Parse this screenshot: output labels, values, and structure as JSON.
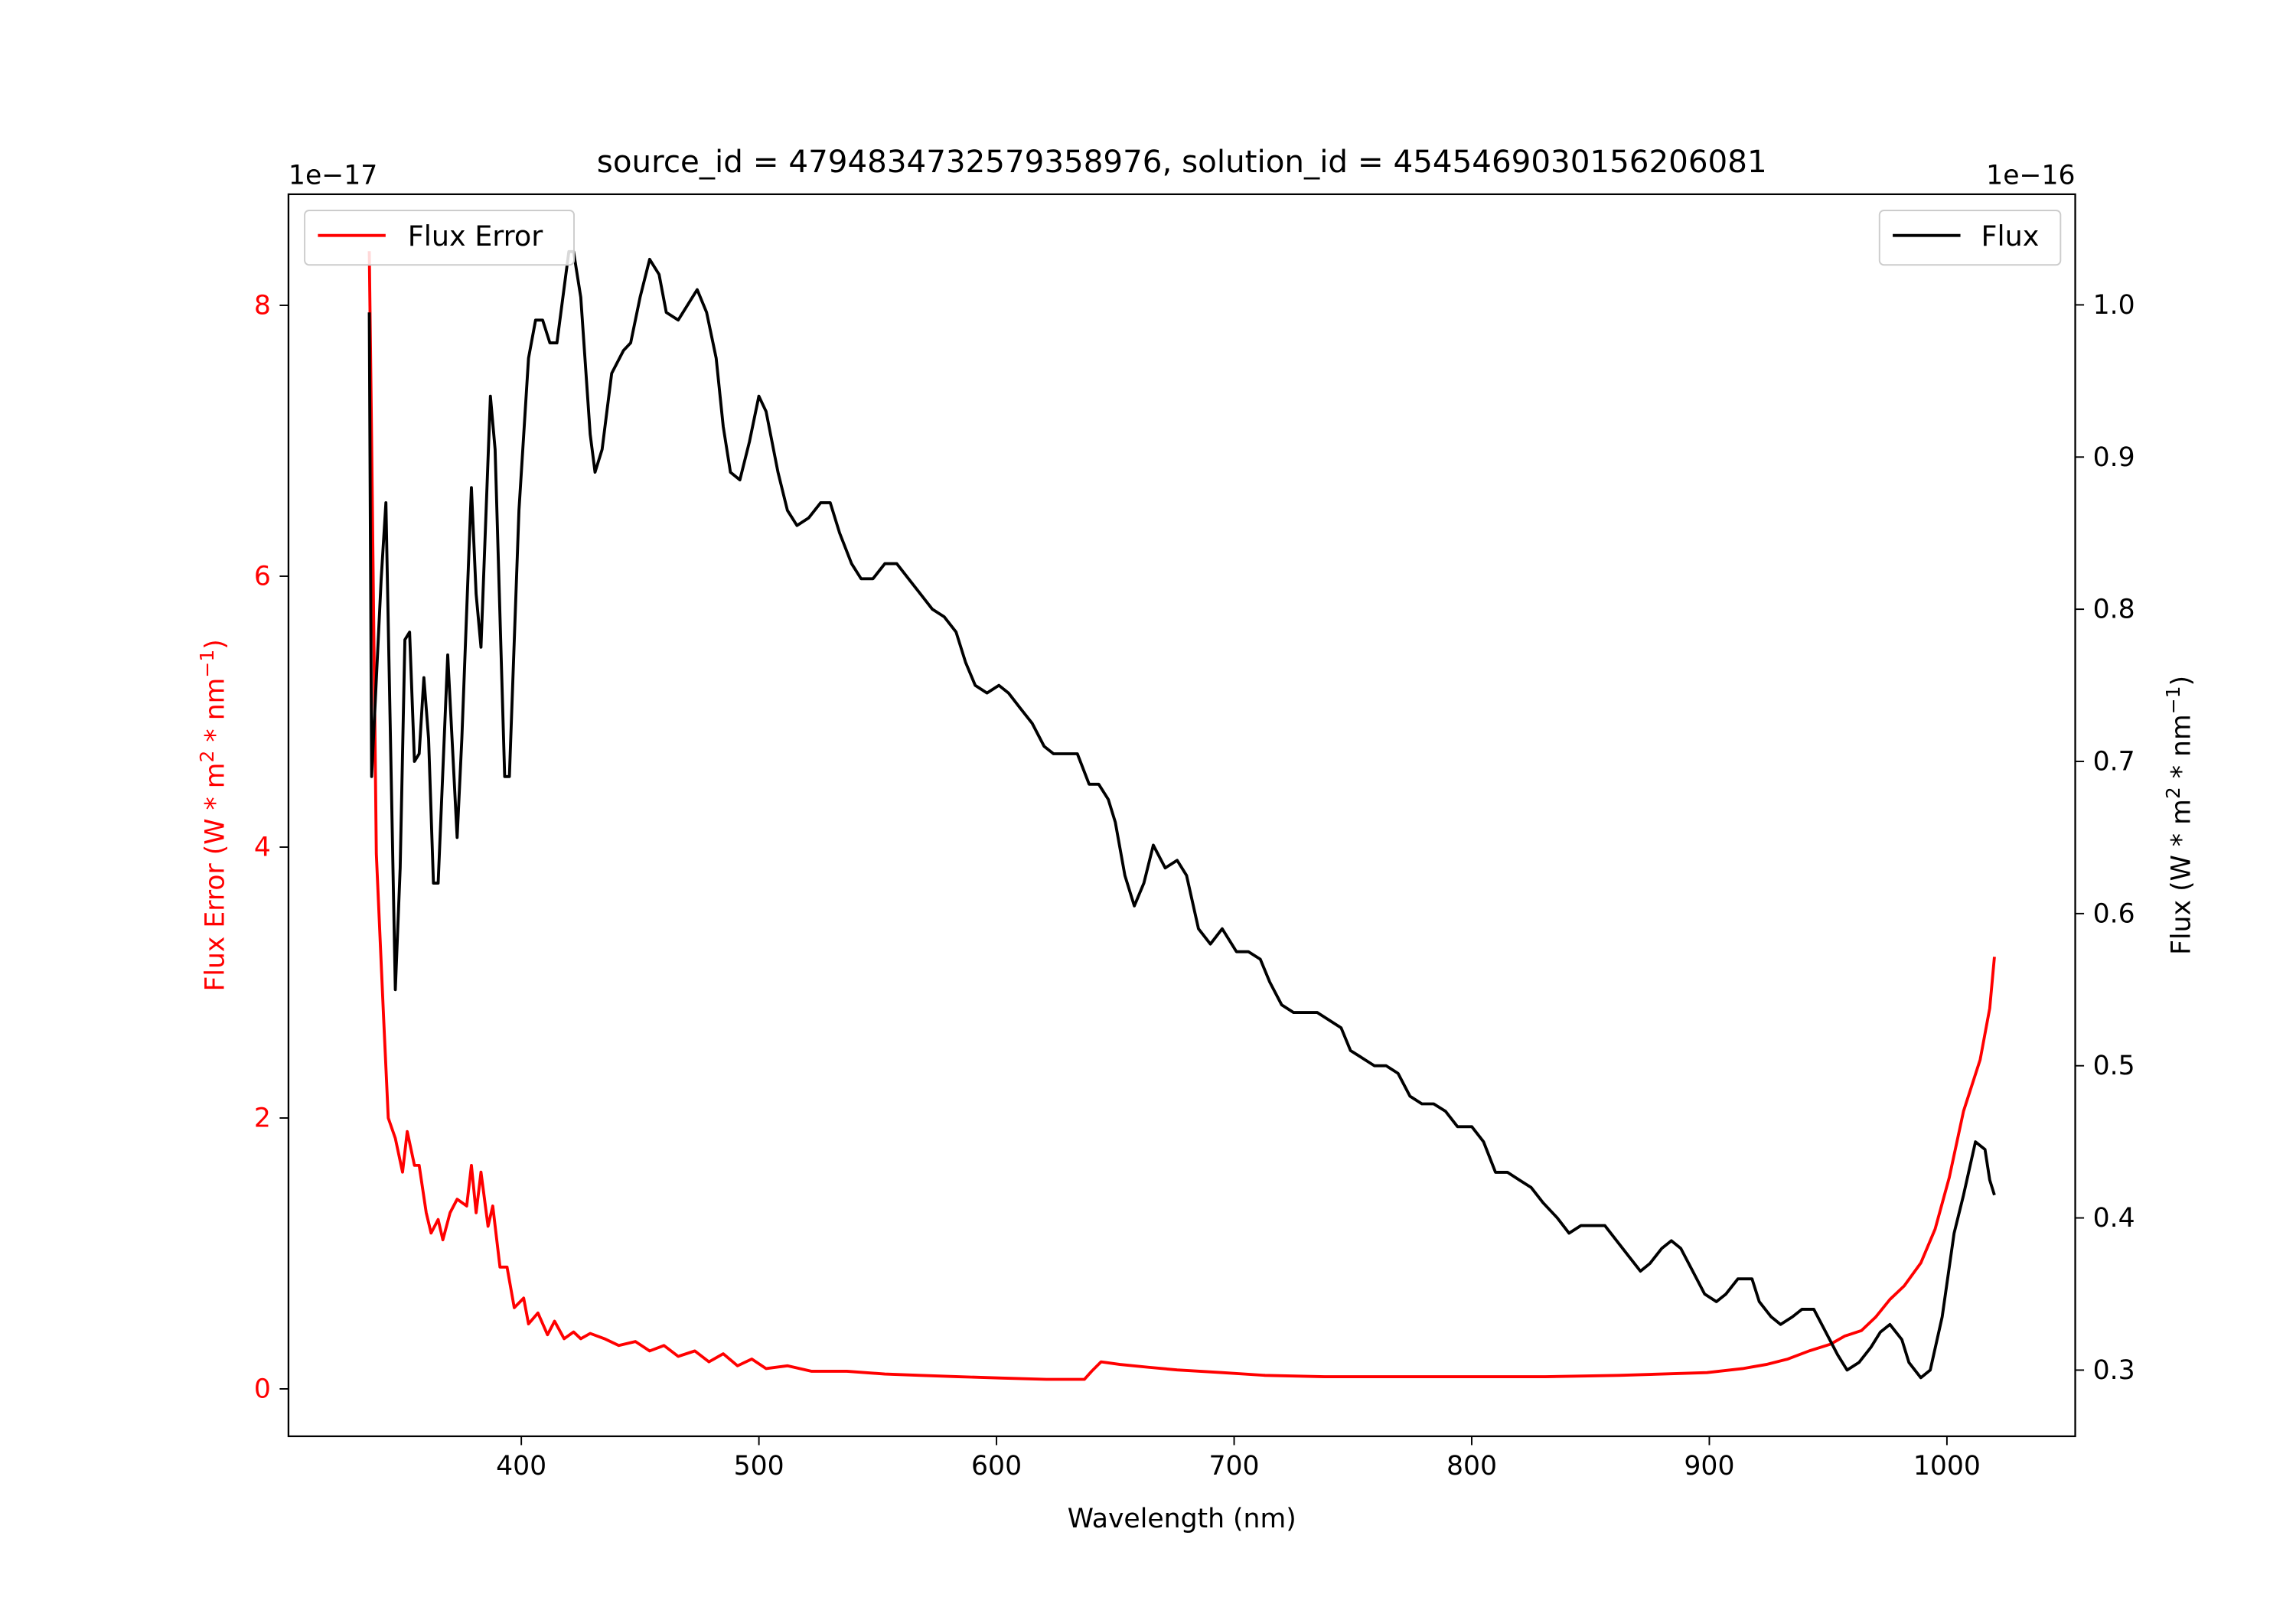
{
  "chart_data": {
    "type": "line",
    "title": "source_id = 4794834732579358976, solution_id = 4545469030156206081",
    "xlabel": "Wavelength (nm)",
    "ylabel_left": {
      "base": "Flux Error (W * m",
      "sup1": "2",
      "mid": " * nm",
      "sup2": "−1",
      "end": ")"
    },
    "ylabel_right": {
      "base": "Flux (W * m",
      "sup1": "2",
      "mid": " * nm",
      "sup2": "−1",
      "end": ")"
    },
    "offset_left": "1e−17",
    "offset_right": "1e−16",
    "xlim": [
      302,
      1054
    ],
    "ylim_left": [
      -0.35,
      8.82
    ],
    "ylim_right": [
      0.2565,
      1.0727
    ],
    "xticks": [
      400,
      500,
      600,
      700,
      800,
      900,
      1000
    ],
    "xtick_labels": [
      "400",
      "500",
      "600",
      "700",
      "800",
      "900",
      "1000"
    ],
    "yticks_left": [
      0,
      2,
      4,
      6,
      8
    ],
    "ytick_labels_left": [
      "0",
      "2",
      "4",
      "6",
      "8"
    ],
    "yticks_right": [
      0.3,
      0.4,
      0.5,
      0.6,
      0.7,
      0.8,
      0.9,
      1.0
    ],
    "ytick_labels_right": [
      "0.3",
      "0.4",
      "0.5",
      "0.6",
      "0.7",
      "0.8",
      "0.9",
      "1.0"
    ],
    "grid": false,
    "legend_left": {
      "label": "Flux Error",
      "placement": "top-left"
    },
    "legend_right": {
      "label": "Flux",
      "placement": "top-right"
    },
    "colors": {
      "flux_error": "#ff0000",
      "flux": "#000000",
      "left_axis": "#ff0000",
      "right_axis": "#000000"
    },
    "series": [
      {
        "name": "Flux Error",
        "axis": "left",
        "color": "#ff0000",
        "x": [
          336,
          337,
          339,
          342,
          344,
          347,
          350,
          352,
          355,
          357,
          360,
          362,
          365,
          367,
          370,
          373,
          377,
          379,
          381,
          383,
          386,
          388,
          391,
          394,
          397,
          401,
          403,
          407,
          411,
          414,
          418,
          422,
          425,
          429,
          435,
          441,
          448,
          454,
          460,
          466,
          473,
          479,
          485,
          491,
          497,
          503,
          512,
          522,
          537,
          553,
          568,
          584,
          602,
          621,
          637,
          640,
          644,
          652,
          664,
          676,
          695,
          713,
          738,
          800,
          831,
          862,
          880,
          899,
          914,
          924,
          933,
          942,
          951,
          957,
          964,
          970,
          976,
          982,
          989,
          995,
          1001,
          1007,
          1014,
          1018,
          1020
        ],
        "y": [
          8.4,
          7.0,
          3.95,
          2.75,
          2.0,
          1.85,
          1.6,
          1.9,
          1.65,
          1.65,
          1.3,
          1.15,
          1.25,
          1.1,
          1.3,
          1.4,
          1.35,
          1.65,
          1.3,
          1.6,
          1.2,
          1.35,
          0.9,
          0.9,
          0.6,
          0.67,
          0.48,
          0.56,
          0.4,
          0.5,
          0.37,
          0.42,
          0.37,
          0.41,
          0.37,
          0.32,
          0.35,
          0.28,
          0.32,
          0.24,
          0.28,
          0.2,
          0.26,
          0.17,
          0.22,
          0.15,
          0.17,
          0.13,
          0.13,
          0.11,
          0.1,
          0.09,
          0.08,
          0.07,
          0.07,
          0.13,
          0.2,
          0.18,
          0.16,
          0.14,
          0.12,
          0.1,
          0.09,
          0.09,
          0.09,
          0.1,
          0.11,
          0.12,
          0.15,
          0.18,
          0.22,
          0.28,
          0.33,
          0.39,
          0.43,
          0.53,
          0.66,
          0.76,
          0.93,
          1.18,
          1.56,
          2.05,
          2.43,
          2.81,
          3.19
        ]
      },
      {
        "name": "Flux",
        "axis": "right",
        "color": "#000000",
        "x": [
          336,
          337,
          341,
          343,
          347,
          349,
          351,
          353,
          355,
          357,
          359,
          361,
          363,
          365,
          369,
          373,
          375,
          378,
          379,
          381,
          383,
          387,
          389,
          393,
          395,
          399,
          403,
          406,
          409,
          412,
          415,
          420,
          422,
          425,
          429,
          431,
          434,
          438,
          443,
          446,
          450,
          454,
          458,
          461,
          466,
          470,
          474,
          478,
          482,
          485,
          488,
          492,
          496,
          500,
          503,
          508,
          512,
          516,
          521,
          526,
          530,
          534,
          539,
          543,
          548,
          553,
          558,
          563,
          568,
          573,
          578,
          583,
          587,
          591,
          596,
          601,
          605,
          610,
          615,
          620,
          624,
          629,
          634,
          639,
          643,
          647,
          650,
          654,
          658,
          662,
          666,
          671,
          676,
          680,
          685,
          690,
          695,
          701,
          706,
          711,
          715,
          720,
          725,
          730,
          735,
          740,
          745,
          749,
          754,
          759,
          764,
          769,
          774,
          779,
          784,
          789,
          794,
          800,
          805,
          810,
          815,
          820,
          825,
          830,
          836,
          841,
          846,
          851,
          856,
          861,
          866,
          871,
          875,
          880,
          884,
          888,
          893,
          898,
          903,
          907,
          912,
          918,
          921,
          926,
          930,
          935,
          939,
          944,
          949,
          954,
          958,
          963,
          968,
          972,
          976,
          981,
          984,
          989,
          993,
          998,
          1003,
          1007,
          1012,
          1016,
          1018,
          1020
        ],
        "y": [
          0.995,
          0.69,
          0.82,
          0.87,
          0.55,
          0.63,
          0.78,
          0.785,
          0.7,
          0.705,
          0.755,
          0.715,
          0.62,
          0.62,
          0.77,
          0.65,
          0.715,
          0.84,
          0.88,
          0.81,
          0.775,
          0.94,
          0.905,
          0.69,
          0.69,
          0.865,
          0.965,
          0.99,
          0.99,
          0.975,
          0.975,
          1.035,
          1.035,
          1.005,
          0.915,
          0.89,
          0.905,
          0.955,
          0.97,
          0.975,
          1.005,
          1.03,
          1.02,
          0.995,
          0.99,
          1.0,
          1.01,
          0.995,
          0.965,
          0.92,
          0.89,
          0.885,
          0.91,
          0.94,
          0.93,
          0.89,
          0.865,
          0.855,
          0.86,
          0.87,
          0.87,
          0.85,
          0.83,
          0.82,
          0.82,
          0.83,
          0.83,
          0.82,
          0.81,
          0.8,
          0.795,
          0.785,
          0.765,
          0.75,
          0.745,
          0.75,
          0.745,
          0.735,
          0.725,
          0.71,
          0.705,
          0.705,
          0.705,
          0.685,
          0.685,
          0.675,
          0.66,
          0.625,
          0.605,
          0.62,
          0.645,
          0.63,
          0.635,
          0.625,
          0.59,
          0.58,
          0.59,
          0.575,
          0.575,
          0.57,
          0.555,
          0.54,
          0.535,
          0.535,
          0.535,
          0.53,
          0.525,
          0.51,
          0.505,
          0.5,
          0.5,
          0.495,
          0.48,
          0.475,
          0.475,
          0.47,
          0.46,
          0.46,
          0.45,
          0.43,
          0.43,
          0.425,
          0.42,
          0.41,
          0.4,
          0.39,
          0.395,
          0.395,
          0.395,
          0.385,
          0.375,
          0.365,
          0.37,
          0.38,
          0.385,
          0.38,
          0.365,
          0.35,
          0.345,
          0.35,
          0.36,
          0.36,
          0.345,
          0.335,
          0.33,
          0.335,
          0.34,
          0.34,
          0.325,
          0.31,
          0.3,
          0.305,
          0.315,
          0.325,
          0.33,
          0.32,
          0.305,
          0.295,
          0.3,
          0.335,
          0.39,
          0.415,
          0.45,
          0.445,
          0.425,
          0.415
        ]
      }
    ]
  }
}
